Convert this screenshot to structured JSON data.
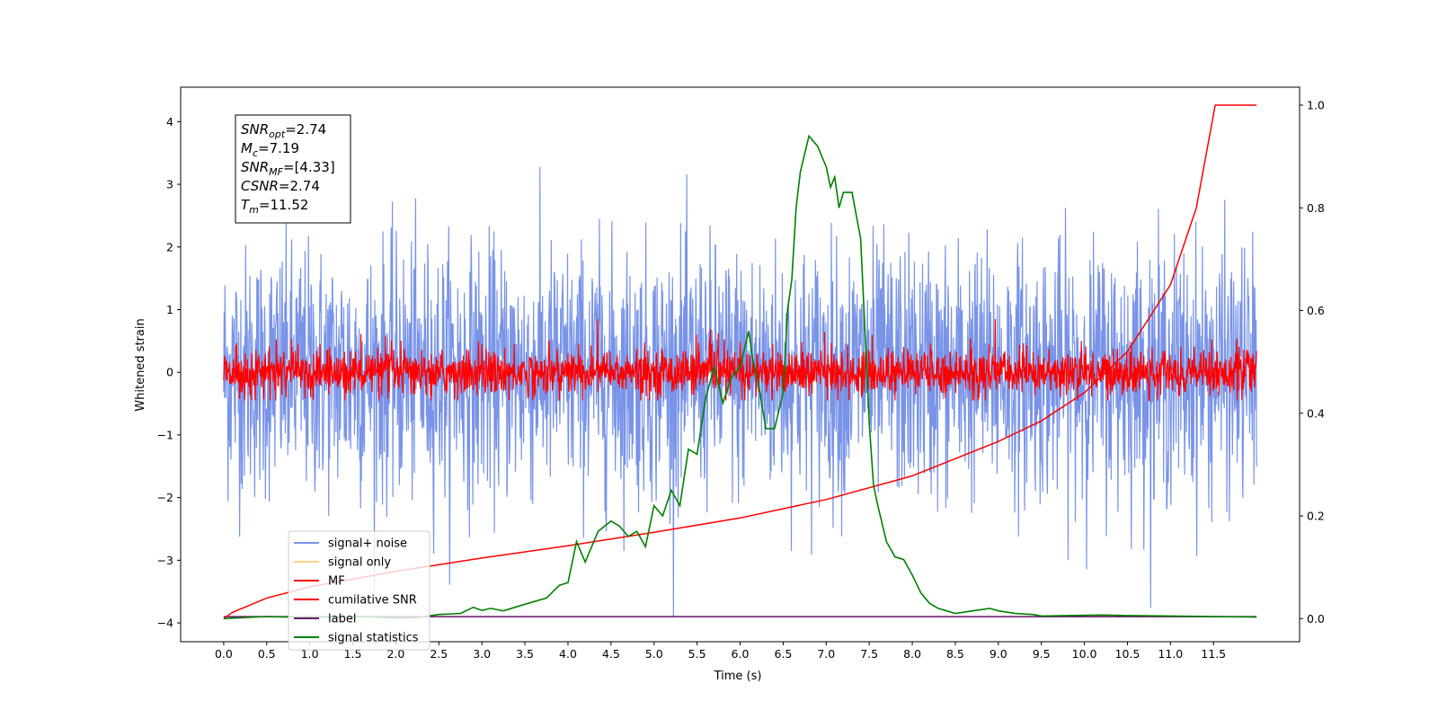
{
  "chart_data": {
    "type": "line",
    "title": "",
    "xlabel": "Time (s)",
    "ylabel": "Whitened strain",
    "y2label": "",
    "xlim": [
      -0.5,
      12.5
    ],
    "ylim": [
      -4.3,
      4.55
    ],
    "y2lim": [
      -0.045,
      1.035
    ],
    "x_ticks": [
      "0.0",
      "0.5",
      "1.0",
      "1.5",
      "2.0",
      "2.5",
      "3.0",
      "3.5",
      "4.0",
      "4.5",
      "5.0",
      "5.5",
      "6.0",
      "6.5",
      "7.0",
      "7.5",
      "8.0",
      "8.5",
      "9.0",
      "9.5",
      "10.0",
      "10.5",
      "11.0",
      "11.5"
    ],
    "y_ticks": [
      "−4",
      "−3",
      "−2",
      "−1",
      "0",
      "1",
      "2",
      "3",
      "4"
    ],
    "y2_ticks": [
      "0.0",
      "0.2",
      "0.4",
      "0.6",
      "0.8",
      "1.0"
    ],
    "grid": false,
    "legend_position": "lower-left",
    "info_box": {
      "lines": [
        {
          "main": "SNR",
          "sub": "opt",
          "value": "=2.74"
        },
        {
          "main": "M",
          "sub": "c",
          "value": "=7.19"
        },
        {
          "main": "SNR",
          "sub": "MF",
          "value": "=[4.33]"
        },
        {
          "main": "CSNR",
          "sub": "",
          "value": "=2.74"
        },
        {
          "main": "T",
          "sub": "m",
          "value": "=11.52"
        }
      ]
    },
    "series": [
      {
        "name": "signal+ noise",
        "color": "#7893e8",
        "axis": "left",
        "description_amplitude": 1.0,
        "x_range": [
          0.0,
          12.0
        ]
      },
      {
        "name": "signal only",
        "color": "#ffd08a",
        "axis": "left"
      },
      {
        "name": "MF",
        "color": "#ff0000",
        "axis": "left",
        "x_range": [
          0.0,
          12.0
        ]
      },
      {
        "name": "cumilative SNR",
        "color": "#ff0000",
        "axis": "right",
        "x": [
          0.0,
          0.1,
          0.5,
          1.0,
          2.0,
          3.0,
          4.0,
          5.0,
          6.0,
          7.0,
          8.0,
          9.0,
          9.5,
          10.0,
          10.5,
          11.0,
          11.3,
          11.52,
          12.0
        ],
        "values": [
          0.0,
          0.012,
          0.04,
          0.062,
          0.092,
          0.118,
          0.142,
          0.168,
          0.196,
          0.232,
          0.278,
          0.345,
          0.385,
          0.44,
          0.52,
          0.65,
          0.8,
          1.0,
          1.0
        ]
      },
      {
        "name": "label",
        "color": "#6a0d6a",
        "axis": "left",
        "x": [
          0.0,
          12.0
        ],
        "values": [
          -3.9,
          -3.9
        ]
      },
      {
        "name": "signal statistics",
        "color": "#008000",
        "axis": "right",
        "x": [
          0.0,
          0.25,
          0.5,
          0.75,
          1.0,
          1.25,
          1.5,
          1.75,
          2.0,
          2.25,
          2.5,
          2.75,
          2.9,
          3.0,
          3.1,
          3.25,
          3.5,
          3.75,
          3.9,
          4.0,
          4.1,
          4.2,
          4.35,
          4.5,
          4.6,
          4.7,
          4.8,
          4.9,
          5.0,
          5.1,
          5.2,
          5.3,
          5.4,
          5.5,
          5.6,
          5.7,
          5.8,
          5.9,
          6.0,
          6.1,
          6.15,
          6.2,
          6.3,
          6.4,
          6.5,
          6.55,
          6.6,
          6.65,
          6.7,
          6.8,
          6.9,
          7.0,
          7.05,
          7.1,
          7.15,
          7.2,
          7.3,
          7.4,
          7.5,
          7.55,
          7.6,
          7.7,
          7.8,
          7.9,
          8.0,
          8.1,
          8.2,
          8.3,
          8.4,
          8.5,
          8.7,
          8.9,
          9.0,
          9.2,
          9.4,
          9.5,
          9.8,
          10.2,
          10.5,
          11.0,
          11.5,
          12.0
        ],
        "values": [
          0.0,
          0.002,
          0.004,
          0.003,
          0.004,
          0.002,
          0.004,
          0.003,
          0.001,
          0.002,
          0.008,
          0.01,
          0.022,
          0.016,
          0.02,
          0.015,
          0.028,
          0.04,
          0.065,
          0.07,
          0.15,
          0.11,
          0.17,
          0.19,
          0.18,
          0.16,
          0.17,
          0.14,
          0.22,
          0.2,
          0.25,
          0.22,
          0.33,
          0.32,
          0.43,
          0.49,
          0.42,
          0.47,
          0.49,
          0.56,
          0.5,
          0.47,
          0.37,
          0.37,
          0.44,
          0.6,
          0.66,
          0.8,
          0.87,
          0.94,
          0.92,
          0.88,
          0.84,
          0.86,
          0.8,
          0.83,
          0.83,
          0.74,
          0.38,
          0.26,
          0.22,
          0.15,
          0.12,
          0.115,
          0.085,
          0.05,
          0.03,
          0.02,
          0.015,
          0.01,
          0.015,
          0.02,
          0.015,
          0.01,
          0.008,
          0.005,
          0.006,
          0.007,
          0.006,
          0.005,
          0.004,
          0.003
        ]
      }
    ]
  }
}
